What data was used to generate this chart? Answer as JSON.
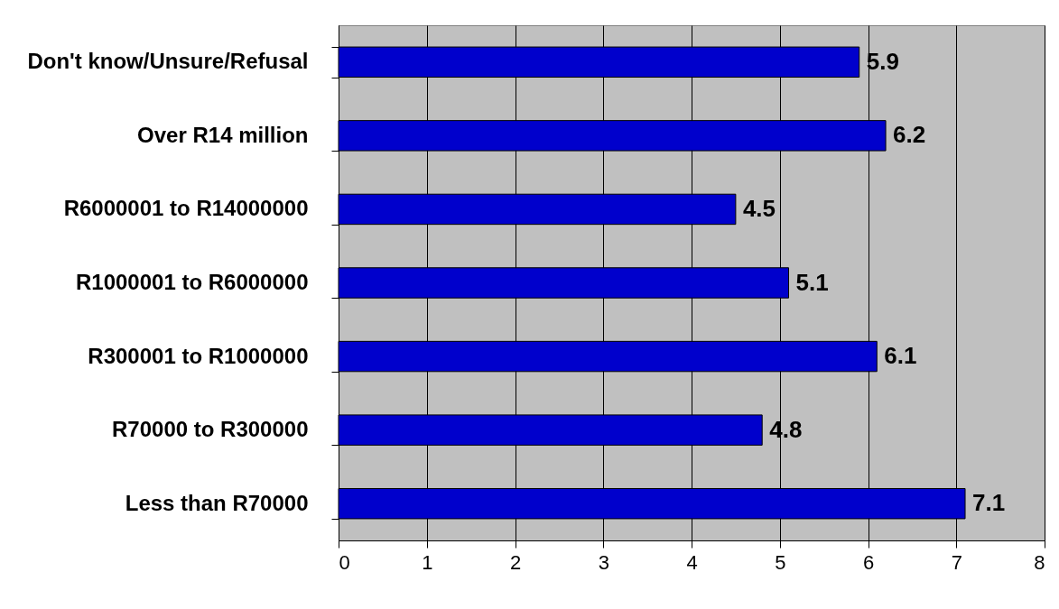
{
  "chart_data": {
    "type": "bar",
    "orientation": "horizontal",
    "categories": [
      "Don't know/Unsure/Refusal",
      "Over R14 million",
      "R6000001 to R14000000",
      "R1000001 to R6000000",
      "R300001 to R1000000",
      "R70000 to R300000",
      "Less than R70000"
    ],
    "values": [
      5.9,
      6.2,
      4.5,
      5.1,
      6.1,
      4.8,
      7.1
    ],
    "color": "#0000cc",
    "xlim": [
      0,
      8
    ],
    "xticks": [
      0,
      1,
      2,
      3,
      4,
      5,
      6,
      7,
      8
    ],
    "grid": "x",
    "data_labels": true
  }
}
